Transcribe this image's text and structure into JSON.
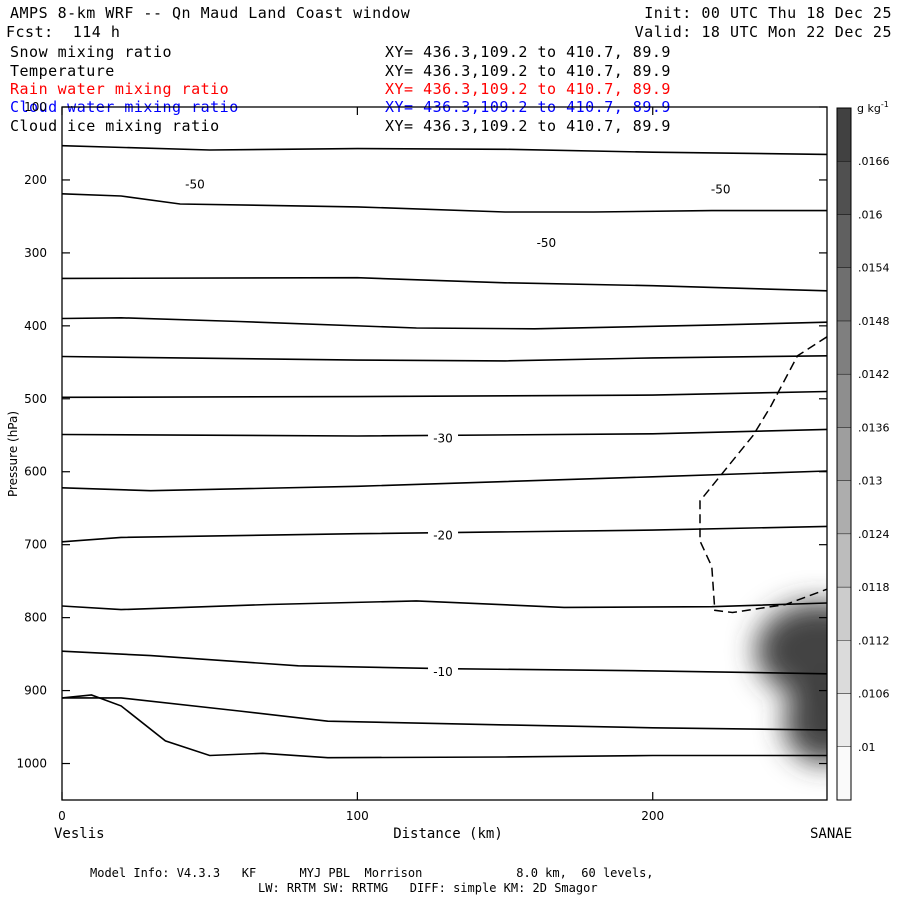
{
  "header": {
    "title": "AMPS 8-km WRF -- Qn Maud Land Coast window",
    "init": "Init: 00 UTC Thu 18 Dec 25",
    "forecast": "Fcst:  114 h",
    "valid": "Valid: 18 UTC Mon 22 Dec 25"
  },
  "fields": [
    {
      "name": "Snow mixing ratio",
      "xy": "XY= 436.3,109.2 to 410.7, 89.9",
      "color": "#000000"
    },
    {
      "name": "Temperature",
      "xy": "XY= 436.3,109.2 to 410.7, 89.9",
      "color": "#000000"
    },
    {
      "name": "Rain water mixing ratio",
      "xy": "XY= 436.3,109.2 to 410.7, 89.9",
      "color": "#ff0000"
    },
    {
      "name": "Cloud water mixing ratio",
      "xy": "XY= 436.3,109.2 to 410.7, 89.9",
      "color": "#0000ff"
    },
    {
      "name": "Cloud ice mixing ratio",
      "xy": "XY= 436.3,109.2 to 410.7, 89.9",
      "color": "#000000"
    }
  ],
  "footer": {
    "line1": "Model Info: V4.3.3   KF      MYJ PBL  Morrison             8.0 km,  60 levels,",
    "line2": "LW: RRTM SW: RRTMG   DIFF: simple KM: 2D Smagor"
  },
  "chart_data": {
    "type": "cross-section contour",
    "xlabel": "Distance (km)",
    "ylabel": "Pressure (hPa)",
    "xlim": [
      0,
      259
    ],
    "ylim": [
      1050,
      100
    ],
    "x_ticks": [
      0,
      100,
      200
    ],
    "y_ticks": [
      100,
      200,
      300,
      400,
      500,
      600,
      700,
      800,
      900,
      1000
    ],
    "left_endpoint": "Veslis",
    "right_endpoint": "SANAE",
    "colorbar": {
      "unit": "g kg",
      "unit_exponent": "-1",
      "levels": [
        ".01",
        ".0106",
        ".0112",
        ".0118",
        ".0124",
        ".013",
        ".0136",
        ".0142",
        ".0148",
        ".0154",
        ".016",
        ".0166"
      ]
    },
    "temperature_contour_labels": [
      {
        "label": "-50",
        "x": 45,
        "p": 205
      },
      {
        "label": "-50",
        "x": 223,
        "p": 212
      },
      {
        "label": "-50",
        "x": 164,
        "p": 285
      },
      {
        "label": "-30",
        "x": 129,
        "p": 553
      },
      {
        "label": "-20",
        "x": 129,
        "p": 686
      },
      {
        "label": "-10",
        "x": 129,
        "p": 873
      }
    ],
    "temperature_contours": [
      [
        [
          0,
          153
        ],
        [
          50,
          159
        ],
        [
          100,
          157
        ],
        [
          150,
          158
        ],
        [
          200,
          162
        ],
        [
          259,
          165
        ]
      ],
      [
        [
          0,
          219
        ],
        [
          20,
          222
        ],
        [
          40,
          233
        ],
        [
          100,
          237
        ],
        [
          150,
          244
        ],
        [
          180,
          244
        ],
        [
          220,
          242
        ],
        [
          259,
          242
        ]
      ],
      [
        [
          0,
          335
        ],
        [
          100,
          334
        ],
        [
          150,
          341
        ],
        [
          200,
          345
        ],
        [
          259,
          352
        ]
      ],
      [
        [
          0,
          390
        ],
        [
          20,
          389
        ],
        [
          60,
          394
        ],
        [
          120,
          403
        ],
        [
          160,
          404
        ],
        [
          220,
          399
        ],
        [
          259,
          395
        ]
      ],
      [
        [
          0,
          442
        ],
        [
          100,
          447
        ],
        [
          150,
          448
        ],
        [
          200,
          444
        ],
        [
          259,
          441
        ]
      ],
      [
        [
          0,
          498
        ],
        [
          100,
          497
        ],
        [
          200,
          495
        ],
        [
          259,
          490
        ]
      ],
      [
        [
          0,
          549
        ],
        [
          100,
          551
        ],
        [
          200,
          548
        ],
        [
          259,
          542
        ]
      ],
      [
        [
          0,
          622
        ],
        [
          30,
          626
        ],
        [
          100,
          620
        ],
        [
          200,
          607
        ],
        [
          259,
          599
        ]
      ],
      [
        [
          0,
          696
        ],
        [
          20,
          690
        ],
        [
          100,
          685
        ],
        [
          200,
          680
        ],
        [
          259,
          675
        ]
      ],
      [
        [
          0,
          784
        ],
        [
          20,
          789
        ],
        [
          70,
          782
        ],
        [
          120,
          777
        ],
        [
          170,
          786
        ],
        [
          220,
          785
        ],
        [
          259,
          780
        ]
      ],
      [
        [
          0,
          846
        ],
        [
          30,
          852
        ],
        [
          80,
          866
        ],
        [
          130,
          870
        ],
        [
          200,
          873
        ],
        [
          259,
          877
        ]
      ],
      [
        [
          0,
          910
        ],
        [
          20,
          910
        ],
        [
          60,
          928
        ],
        [
          90,
          942
        ],
        [
          150,
          947
        ],
        [
          200,
          951
        ],
        [
          259,
          954
        ]
      ],
      [
        [
          0,
          910
        ],
        [
          10,
          906
        ],
        [
          20,
          921
        ],
        [
          35,
          969
        ],
        [
          50,
          989
        ],
        [
          68,
          986
        ],
        [
          90,
          992
        ],
        [
          150,
          991
        ],
        [
          200,
          989
        ],
        [
          259,
          989
        ]
      ]
    ],
    "dashed_contour": [
      [
        259,
        415
      ],
      [
        249,
        441
      ],
      [
        240,
        510
      ],
      [
        234,
        550
      ],
      [
        225,
        595
      ],
      [
        216,
        640
      ],
      [
        216,
        695
      ],
      [
        220,
        730
      ],
      [
        221,
        790
      ],
      [
        227,
        793
      ],
      [
        245,
        782
      ],
      [
        259,
        761
      ]
    ],
    "shaded_region_snow_mixing_ratio": [
      {
        "x": 256,
        "p": 845,
        "value": 0.0166
      },
      {
        "x": 258,
        "p": 945,
        "value": 0.016
      }
    ]
  }
}
